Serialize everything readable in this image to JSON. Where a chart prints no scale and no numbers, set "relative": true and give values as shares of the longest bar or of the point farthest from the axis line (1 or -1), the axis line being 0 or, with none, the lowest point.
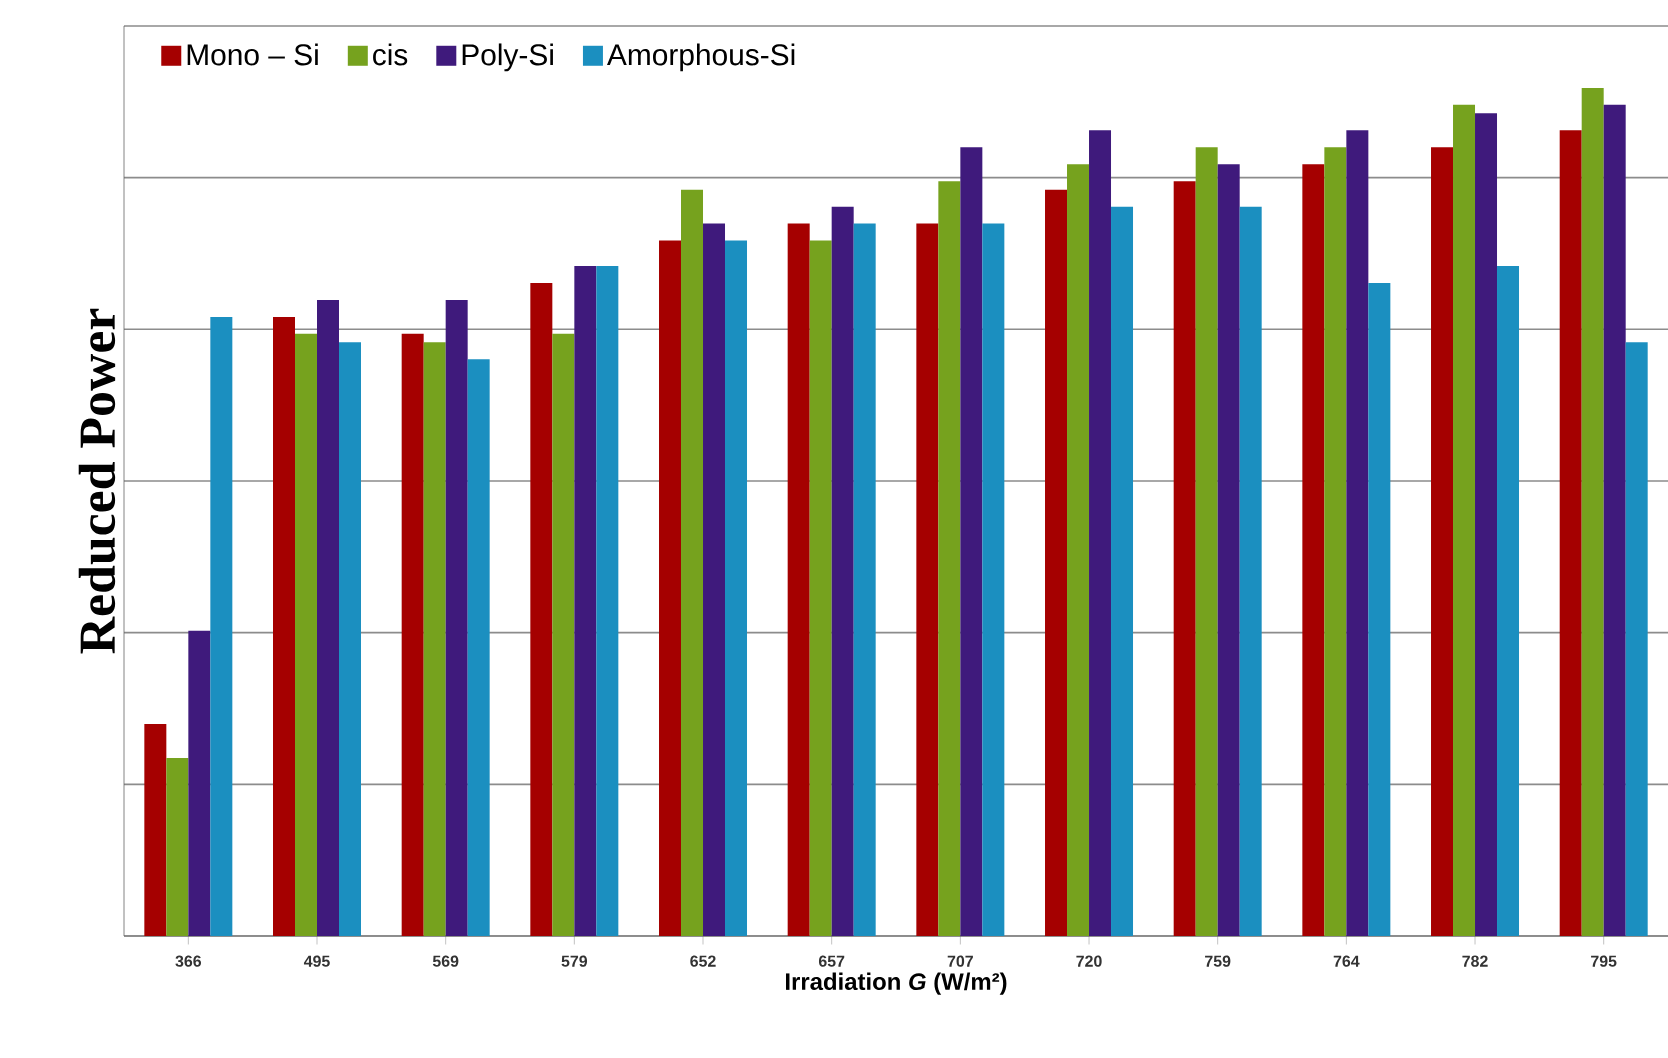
{
  "chart_data": {
    "type": "bar",
    "relative": true,
    "xlabel": "Irradiation *G* (W/m²)",
    "ylabel": "Reduced Power",
    "grid": "y",
    "legend": "top left",
    "categories": [
      "366",
      "495",
      "569",
      "579",
      "652",
      "657",
      "707",
      "720",
      "759",
      "764",
      "782",
      "795"
    ],
    "series": [
      {
        "name": "Mono – Si",
        "color": "#a50000",
        "values": [
          0.25,
          0.73,
          0.71,
          0.77,
          0.82,
          0.84,
          0.84,
          0.88,
          0.89,
          0.91,
          0.93,
          0.95
        ]
      },
      {
        "name": "cis",
        "color": "#76a21e",
        "values": [
          0.21,
          0.71,
          0.7,
          0.71,
          0.88,
          0.82,
          0.89,
          0.91,
          0.93,
          0.93,
          0.98,
          1
        ]
      },
      {
        "name": "Poly-Si",
        "color": "#3f1a7c",
        "values": [
          0.36,
          0.75,
          0.75,
          0.79,
          0.84,
          0.86,
          0.93,
          0.95,
          0.91,
          0.95,
          0.97,
          0.98
        ]
      },
      {
        "name": "Amorphous-Si",
        "color": "#1b8fc0",
        "values": [
          0.73,
          0.7,
          0.68,
          0.79,
          0.82,
          0.84,
          0.84,
          0.86,
          0.86,
          0.77,
          0.79,
          0.7
        ]
      }
    ]
  }
}
